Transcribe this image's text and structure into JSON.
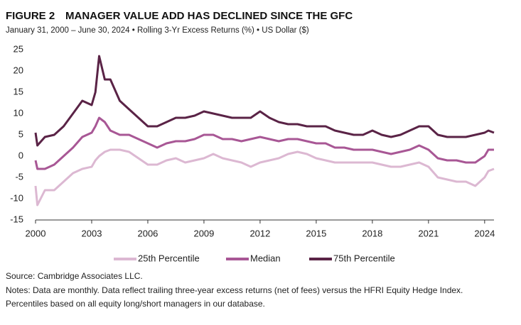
{
  "chart_data": {
    "type": "line",
    "figure_label": "FIGURE 2",
    "title": "MANAGER VALUE ADD HAS DECLINED SINCE THE GFC",
    "subtitle": "January 31, 2000 – June 30, 2024 • Rolling 3-Yr Excess Returns (%) • US Dollar ($)",
    "x": [
      2000.0,
      2000.1,
      2000.5,
      2001.0,
      2001.5,
      2002.0,
      2002.5,
      2003.0,
      2003.2,
      2003.4,
      2003.7,
      2004.0,
      2004.5,
      2005.0,
      2005.5,
      2006.0,
      2006.5,
      2007.0,
      2007.5,
      2008.0,
      2008.5,
      2009.0,
      2009.5,
      2010.0,
      2010.5,
      2011.0,
      2011.5,
      2012.0,
      2012.5,
      2013.0,
      2013.5,
      2014.0,
      2014.5,
      2015.0,
      2015.5,
      2016.0,
      2016.5,
      2017.0,
      2017.5,
      2018.0,
      2018.5,
      2019.0,
      2019.5,
      2020.0,
      2020.5,
      2021.0,
      2021.5,
      2022.0,
      2022.5,
      2023.0,
      2023.5,
      2024.0,
      2024.2,
      2024.5
    ],
    "series": [
      {
        "name": "25th Percentile",
        "color": "#dcb8d2",
        "values": [
          -7,
          -11.5,
          -8,
          -8,
          -6,
          -4,
          -3,
          -2.5,
          -1,
          0,
          1,
          1.5,
          1.5,
          1,
          -0.5,
          -2,
          -2,
          -1,
          -0.5,
          -1.5,
          -1,
          -0.5,
          0.5,
          -0.5,
          -1,
          -1.5,
          -2.5,
          -1.5,
          -1,
          -0.5,
          0.5,
          1,
          0.5,
          -0.5,
          -1,
          -1.5,
          -1.5,
          -1.5,
          -1.5,
          -1.5,
          -2,
          -2.5,
          -2.5,
          -2,
          -1.5,
          -2.5,
          -5,
          -5.5,
          -6,
          -6,
          -7,
          -5,
          -3.5,
          -3
        ]
      },
      {
        "name": "Median",
        "color": "#a85795",
        "values": [
          -1,
          -3,
          -3,
          -2,
          0,
          2,
          4.5,
          5.5,
          7,
          9,
          8,
          6,
          5,
          5,
          4,
          3,
          2,
          3,
          3.5,
          3.5,
          4,
          5,
          5,
          4,
          4,
          3.5,
          4,
          4.5,
          4,
          3.5,
          4,
          4,
          3.5,
          3,
          3,
          2,
          2,
          1.5,
          1.5,
          1.5,
          1,
          0.5,
          1,
          1.5,
          2.5,
          1.5,
          -0.5,
          -1,
          -1,
          -1.5,
          -1.5,
          0,
          1.5,
          1.5
        ]
      },
      {
        "name": "75th Percentile",
        "color": "#5a2346",
        "values": [
          5.5,
          2.5,
          4.5,
          5,
          7,
          10,
          13,
          12,
          15,
          23.5,
          18,
          18,
          13,
          11,
          9,
          7,
          7,
          8,
          9,
          9,
          9.5,
          10.5,
          10,
          9.5,
          9,
          9,
          9,
          10.5,
          9,
          8,
          7.5,
          7.5,
          7,
          7,
          7,
          6,
          5.5,
          5,
          5,
          6,
          5,
          4.5,
          5,
          6,
          7,
          7,
          5,
          4.5,
          4.5,
          4.5,
          5,
          5.5,
          6,
          5.5
        ]
      }
    ],
    "xlim": [
      2000,
      2024.5
    ],
    "xticks": [
      2000,
      2003,
      2006,
      2009,
      2012,
      2015,
      2018,
      2021,
      2024
    ],
    "ylim": [
      -15,
      25
    ],
    "yticks": [
      -15,
      -10,
      -5,
      0,
      5,
      10,
      15,
      20,
      25
    ],
    "grid": false,
    "source": "Source: Cambridge Associates LLC.",
    "notes": [
      "Notes: Data are monthly. Data reflect trailing three-year excess returns (net of fees) versus the HFRI Equity Hedge Index.",
      "Percentiles based on all equity long/short managers in our database."
    ]
  }
}
